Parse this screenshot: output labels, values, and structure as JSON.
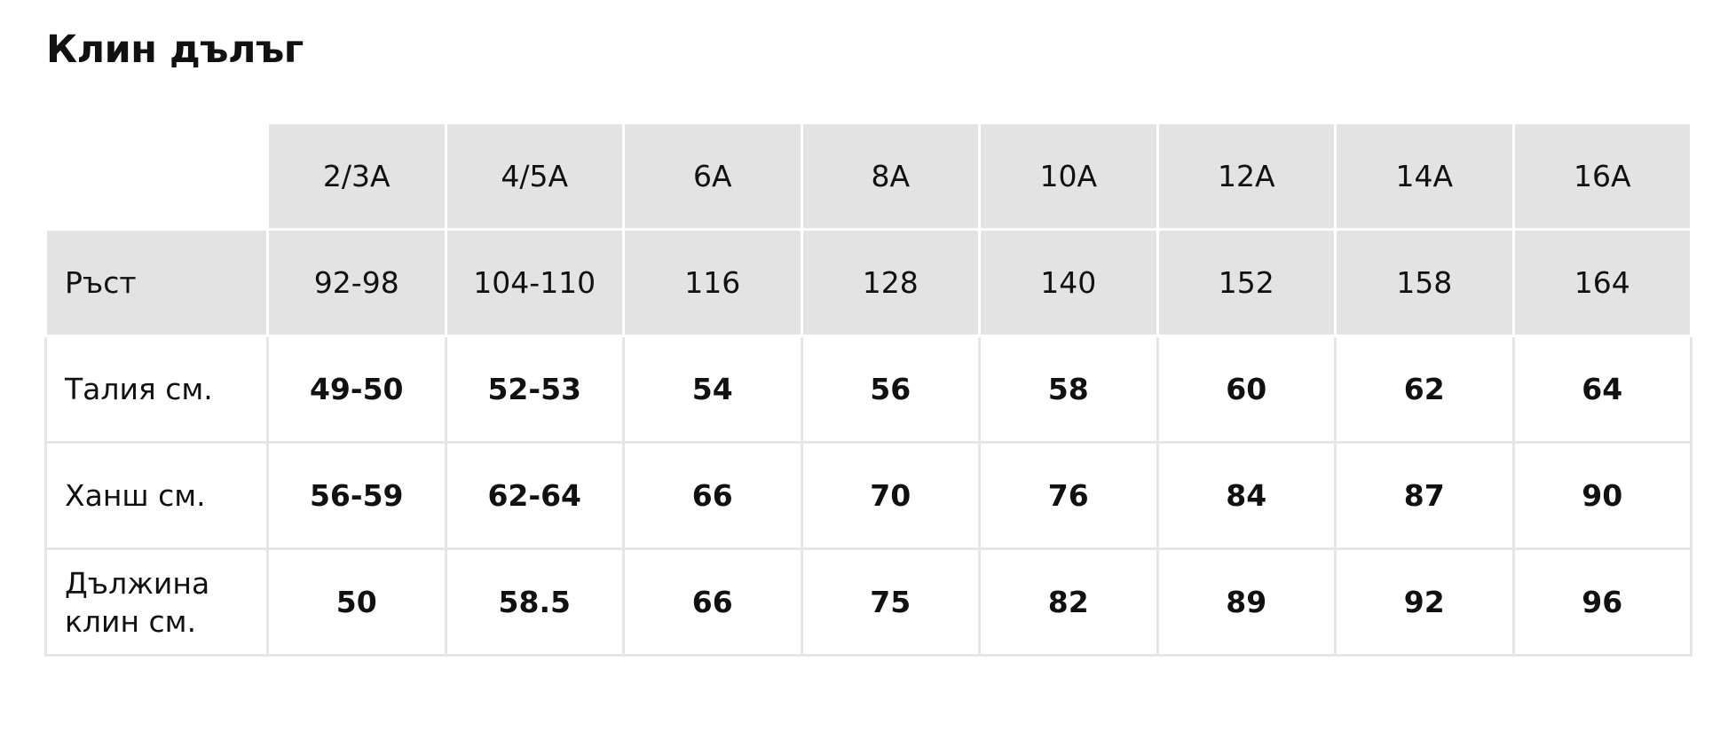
{
  "title": "Клин дълъг",
  "table": {
    "size_header": [
      "2/3A",
      "4/5A",
      "6A",
      "8A",
      "10A",
      "12A",
      "14A",
      "16A"
    ],
    "height_row": {
      "label": "Ръст",
      "values": [
        "92-98",
        "104-110",
        "116",
        "128",
        "140",
        "152",
        "158",
        "164"
      ]
    },
    "rows": [
      {
        "label_line1": "Талия см.",
        "label_line2": "",
        "values": [
          "49-50",
          "52-53",
          "54",
          "56",
          "58",
          "60",
          "62",
          "64"
        ]
      },
      {
        "label_line1": "Ханш см.",
        "label_line2": "",
        "values": [
          "56-59",
          "62-64",
          "66",
          "70",
          "76",
          "84",
          "87",
          "90"
        ]
      },
      {
        "label_line1": "Дължина",
        "label_line2": "клин см.",
        "values": [
          "50",
          "58.5",
          "66",
          "75",
          "82",
          "89",
          "92",
          "96"
        ]
      }
    ]
  },
  "colors": {
    "header_background": "#e3e3e3",
    "grid_line": "#e6e6e6",
    "text": "#111111"
  }
}
